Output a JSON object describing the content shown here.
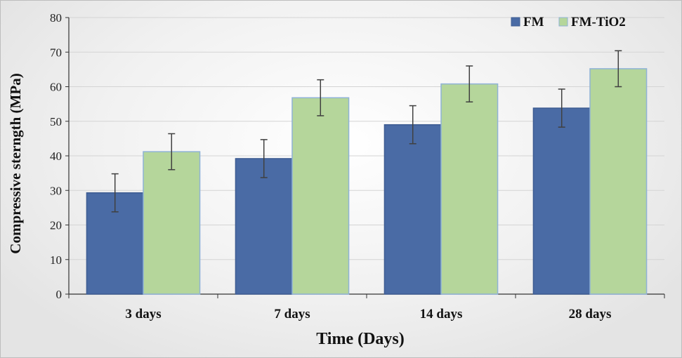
{
  "chart_data": {
    "type": "bar",
    "title": "",
    "xlabel": "Time (Days)",
    "ylabel": "Compressive sterngth (MPa)",
    "categories": [
      "3 days",
      "7 days",
      "14 days",
      "28 days"
    ],
    "ylim": [
      0,
      80
    ],
    "yticks": [
      0,
      10,
      20,
      30,
      40,
      50,
      60,
      70,
      80
    ],
    "grid": true,
    "legend_position": "top-right",
    "series": [
      {
        "name": "FM",
        "color": "#4a6ba5",
        "values": [
          29.3,
          39.2,
          49.0,
          53.8
        ],
        "error": [
          5.5,
          5.5,
          5.5,
          5.5
        ]
      },
      {
        "name": "FM-TiO2",
        "color": "#b5d69b",
        "values": [
          41.2,
          56.8,
          60.8,
          65.2
        ],
        "error": [
          5.2,
          5.2,
          5.2,
          5.2
        ]
      }
    ]
  }
}
